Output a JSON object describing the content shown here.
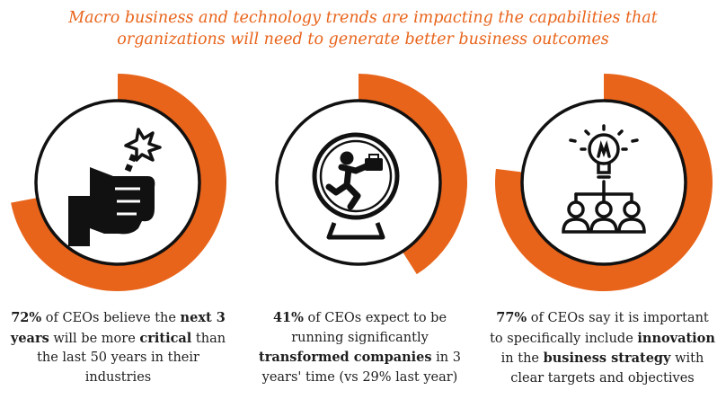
{
  "title": {
    "line1": "Macro business and technology trends are impacting the capabilities that",
    "line2": "organizations will need to generate better business outcomes"
  },
  "colors": {
    "accent": "#e8641b",
    "text": "#1e1e1e",
    "ring_fill": "#ffffff",
    "icon": "#111111"
  },
  "chart_data": [
    {
      "type": "donut",
      "value": 72,
      "unit": "%",
      "icon": "fist-breaking-icon",
      "caption": [
        {
          "t": "72%",
          "b": true
        },
        {
          "t": " of CEOs believe the ",
          "b": false
        },
        {
          "t": "next 3 years",
          "b": true
        },
        {
          "t": " will be more ",
          "b": false
        },
        {
          "t": "critical",
          "b": true
        },
        {
          "t": " than the last 50 years in their industries",
          "b": false
        }
      ]
    },
    {
      "type": "donut",
      "value": 41,
      "unit": "%",
      "icon": "hamster-wheel-runner-icon",
      "caption": [
        {
          "t": "41%",
          "b": true
        },
        {
          "t": " of CEOs expect to be running significantly ",
          "b": false
        },
        {
          "t": "transformed companies",
          "b": true
        },
        {
          "t": " in 3 years' time (vs 29% last year)",
          "b": false
        }
      ]
    },
    {
      "type": "donut",
      "value": 77,
      "unit": "%",
      "icon": "lightbulb-team-icon",
      "caption": [
        {
          "t": "77%",
          "b": true
        },
        {
          "t": " of CEOs say it is important to specifically include ",
          "b": false
        },
        {
          "t": "innovation",
          "b": true
        },
        {
          "t": " in the ",
          "b": false
        },
        {
          "t": "business strategy",
          "b": true
        },
        {
          "t": " with clear targets and objectives",
          "b": false
        }
      ]
    }
  ]
}
